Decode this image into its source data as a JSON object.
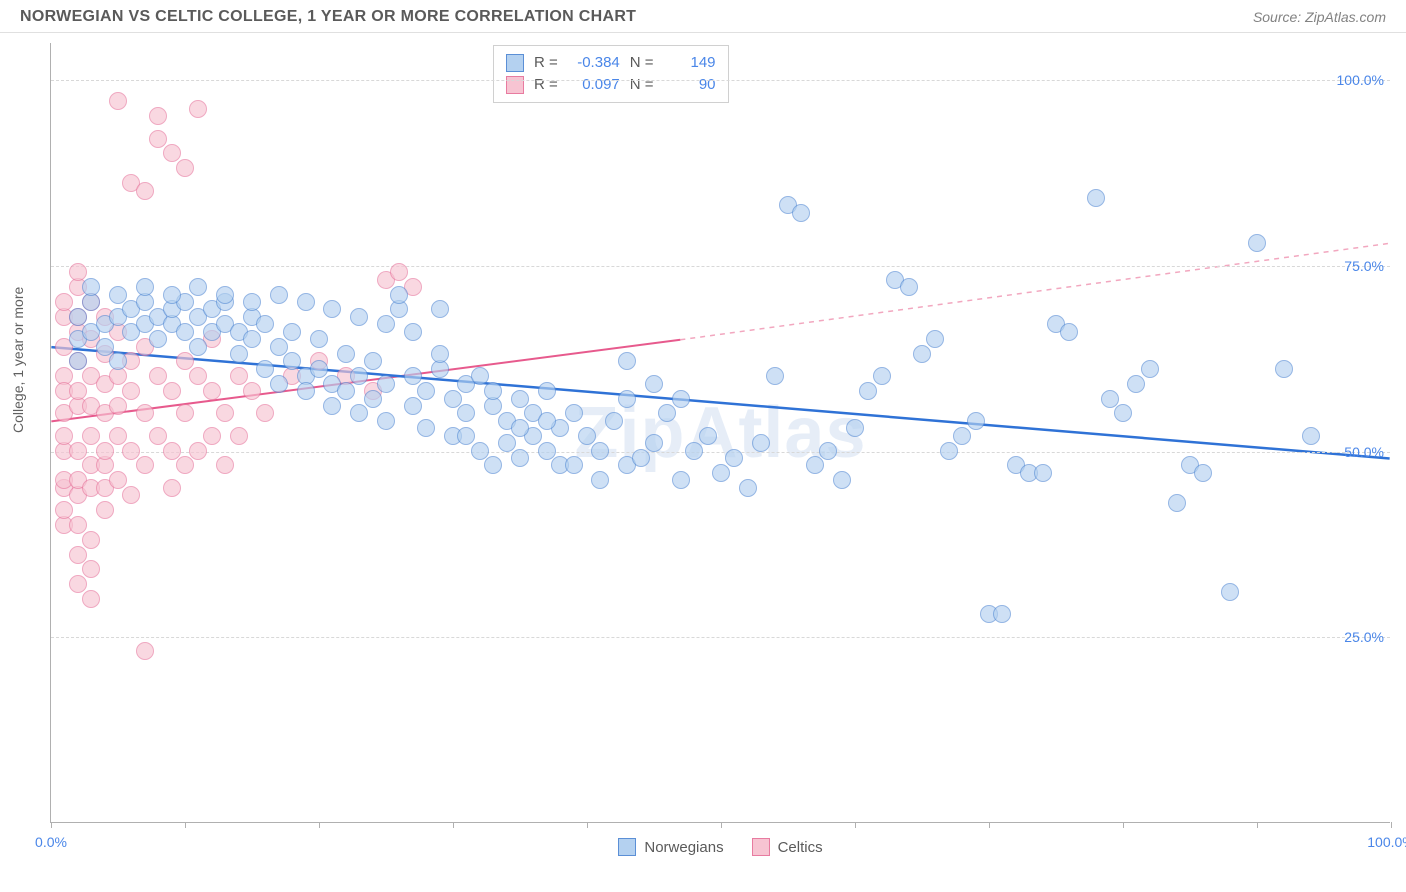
{
  "title": "NORWEGIAN VS CELTIC COLLEGE, 1 YEAR OR MORE CORRELATION CHART",
  "source": "Source: ZipAtlas.com",
  "ylabel": "College, 1 year or more",
  "watermark": "ZipAtlas",
  "chart": {
    "type": "scatter",
    "xlim": [
      0,
      100
    ],
    "ylim": [
      0,
      105
    ],
    "xtick_positions": [
      0,
      10,
      20,
      30,
      40,
      50,
      60,
      70,
      80,
      90,
      100
    ],
    "xtick_labels": {
      "0": "0.0%",
      "100": "100.0%"
    },
    "ytick_positions": [
      25,
      50,
      75,
      100
    ],
    "ytick_labels": {
      "25": "25.0%",
      "50": "50.0%",
      "75": "75.0%",
      "100": "100.0%"
    },
    "grid_color": "#d8d8d8",
    "axis_color": "#b0b0b0",
    "background_color": "#ffffff",
    "label_color": "#4a86e8",
    "point_radius": 9,
    "point_stroke_width": 1,
    "series": [
      {
        "name": "Norwegians",
        "fill": "#b4d1f0",
        "fill_opacity": 0.65,
        "stroke": "#5b8fd6",
        "R": "-0.384",
        "N": "149",
        "trend": {
          "x1": 0,
          "y1": 64,
          "x2": 100,
          "y2": 49,
          "color": "#2f72d6",
          "width": 2.5,
          "dash": "none"
        },
        "points": [
          [
            2,
            68
          ],
          [
            2,
            65
          ],
          [
            3,
            70
          ],
          [
            3,
            66
          ],
          [
            4,
            67
          ],
          [
            4,
            64
          ],
          [
            5,
            68
          ],
          [
            5,
            62
          ],
          [
            6,
            69
          ],
          [
            6,
            66
          ],
          [
            7,
            67
          ],
          [
            7,
            70
          ],
          [
            8,
            68
          ],
          [
            8,
            65
          ],
          [
            9,
            67
          ],
          [
            9,
            69
          ],
          [
            10,
            70
          ],
          [
            10,
            66
          ],
          [
            11,
            68
          ],
          [
            11,
            64
          ],
          [
            12,
            69
          ],
          [
            12,
            66
          ],
          [
            13,
            67
          ],
          [
            13,
            70
          ],
          [
            14,
            66
          ],
          [
            14,
            63
          ],
          [
            15,
            68
          ],
          [
            15,
            65
          ],
          [
            16,
            61
          ],
          [
            16,
            67
          ],
          [
            17,
            64
          ],
          [
            17,
            59
          ],
          [
            18,
            66
          ],
          [
            18,
            62
          ],
          [
            19,
            60
          ],
          [
            19,
            58
          ],
          [
            20,
            65
          ],
          [
            20,
            61
          ],
          [
            21,
            59
          ],
          [
            21,
            56
          ],
          [
            22,
            63
          ],
          [
            22,
            58
          ],
          [
            23,
            60
          ],
          [
            23,
            55
          ],
          [
            24,
            62
          ],
          [
            24,
            57
          ],
          [
            25,
            59
          ],
          [
            25,
            54
          ],
          [
            26,
            69
          ],
          [
            26,
            71
          ],
          [
            27,
            60
          ],
          [
            27,
            56
          ],
          [
            28,
            58
          ],
          [
            28,
            53
          ],
          [
            29,
            61
          ],
          [
            29,
            69
          ],
          [
            30,
            57
          ],
          [
            30,
            52
          ],
          [
            31,
            59
          ],
          [
            31,
            55
          ],
          [
            32,
            60
          ],
          [
            32,
            50
          ],
          [
            33,
            56
          ],
          [
            33,
            58
          ],
          [
            34,
            54
          ],
          [
            34,
            51
          ],
          [
            35,
            57
          ],
          [
            35,
            49
          ],
          [
            36,
            55
          ],
          [
            36,
            52
          ],
          [
            37,
            58
          ],
          [
            37,
            50
          ],
          [
            38,
            53
          ],
          [
            38,
            48
          ],
          [
            39,
            55
          ],
          [
            40,
            52
          ],
          [
            41,
            50
          ],
          [
            42,
            54
          ],
          [
            43,
            48
          ],
          [
            43,
            57
          ],
          [
            44,
            49
          ],
          [
            45,
            51
          ],
          [
            46,
            55
          ],
          [
            47,
            46
          ],
          [
            48,
            50
          ],
          [
            49,
            52
          ],
          [
            50,
            47
          ],
          [
            51,
            49
          ],
          [
            52,
            45
          ],
          [
            53,
            51
          ],
          [
            54,
            60
          ],
          [
            55,
            83
          ],
          [
            56,
            82
          ],
          [
            57,
            48
          ],
          [
            58,
            50
          ],
          [
            59,
            46
          ],
          [
            60,
            53
          ],
          [
            61,
            58
          ],
          [
            62,
            60
          ],
          [
            63,
            73
          ],
          [
            64,
            72
          ],
          [
            65,
            63
          ],
          [
            66,
            65
          ],
          [
            67,
            50
          ],
          [
            68,
            52
          ],
          [
            69,
            54
          ],
          [
            70,
            28
          ],
          [
            71,
            28
          ],
          [
            72,
            48
          ],
          [
            73,
            47
          ],
          [
            74,
            47
          ],
          [
            75,
            67
          ],
          [
            76,
            66
          ],
          [
            78,
            84
          ],
          [
            79,
            57
          ],
          [
            80,
            55
          ],
          [
            81,
            59
          ],
          [
            82,
            61
          ],
          [
            84,
            43
          ],
          [
            85,
            48
          ],
          [
            86,
            47
          ],
          [
            88,
            31
          ],
          [
            90,
            78
          ],
          [
            92,
            61
          ],
          [
            94,
            52
          ],
          [
            2,
            62
          ],
          [
            3,
            72
          ],
          [
            5,
            71
          ],
          [
            7,
            72
          ],
          [
            9,
            71
          ],
          [
            11,
            72
          ],
          [
            13,
            71
          ],
          [
            15,
            70
          ],
          [
            17,
            71
          ],
          [
            19,
            70
          ],
          [
            21,
            69
          ],
          [
            23,
            68
          ],
          [
            25,
            67
          ],
          [
            27,
            66
          ],
          [
            29,
            63
          ],
          [
            31,
            52
          ],
          [
            33,
            48
          ],
          [
            35,
            53
          ],
          [
            37,
            54
          ],
          [
            39,
            48
          ],
          [
            41,
            46
          ],
          [
            43,
            62
          ],
          [
            45,
            59
          ],
          [
            47,
            57
          ]
        ]
      },
      {
        "name": "Celtics",
        "fill": "#f7c4d2",
        "fill_opacity": 0.65,
        "stroke": "#e87ba0",
        "R": "0.097",
        "N": "90",
        "trend_solid": {
          "x1": 0,
          "y1": 54,
          "x2": 47,
          "y2": 65,
          "color": "#e75a8d",
          "width": 2,
          "dash": "none"
        },
        "trend_dash": {
          "x1": 47,
          "y1": 65,
          "x2": 100,
          "y2": 78,
          "color": "#f2a7bf",
          "width": 1.5,
          "dash": "5,5"
        },
        "points": [
          [
            1,
            68
          ],
          [
            1,
            64
          ],
          [
            1,
            60
          ],
          [
            1,
            55
          ],
          [
            1,
            50
          ],
          [
            1,
            45
          ],
          [
            1,
            40
          ],
          [
            1,
            70
          ],
          [
            1,
            58
          ],
          [
            1,
            52
          ],
          [
            1,
            46
          ],
          [
            1,
            42
          ],
          [
            2,
            66
          ],
          [
            2,
            62
          ],
          [
            2,
            56
          ],
          [
            2,
            50
          ],
          [
            2,
            44
          ],
          [
            2,
            40
          ],
          [
            2,
            36
          ],
          [
            2,
            72
          ],
          [
            2,
            68
          ],
          [
            2,
            58
          ],
          [
            2,
            46
          ],
          [
            2,
            32
          ],
          [
            3,
            65
          ],
          [
            3,
            60
          ],
          [
            3,
            52
          ],
          [
            3,
            45
          ],
          [
            3,
            38
          ],
          [
            3,
            70
          ],
          [
            3,
            56
          ],
          [
            3,
            48
          ],
          [
            3,
            34
          ],
          [
            3,
            30
          ],
          [
            4,
            63
          ],
          [
            4,
            55
          ],
          [
            4,
            48
          ],
          [
            4,
            42
          ],
          [
            4,
            68
          ],
          [
            4,
            59
          ],
          [
            4,
            50
          ],
          [
            4,
            45
          ],
          [
            5,
            60
          ],
          [
            5,
            52
          ],
          [
            5,
            46
          ],
          [
            5,
            97
          ],
          [
            5,
            66
          ],
          [
            5,
            56
          ],
          [
            6,
            58
          ],
          [
            6,
            50
          ],
          [
            6,
            44
          ],
          [
            6,
            86
          ],
          [
            6,
            62
          ],
          [
            7,
            64
          ],
          [
            7,
            55
          ],
          [
            7,
            48
          ],
          [
            7,
            85
          ],
          [
            7,
            23
          ],
          [
            8,
            60
          ],
          [
            8,
            52
          ],
          [
            8,
            95
          ],
          [
            8,
            92
          ],
          [
            9,
            58
          ],
          [
            9,
            50
          ],
          [
            9,
            45
          ],
          [
            9,
            90
          ],
          [
            10,
            62
          ],
          [
            10,
            55
          ],
          [
            10,
            48
          ],
          [
            10,
            88
          ],
          [
            11,
            60
          ],
          [
            11,
            50
          ],
          [
            11,
            96
          ],
          [
            12,
            58
          ],
          [
            12,
            52
          ],
          [
            12,
            65
          ],
          [
            13,
            55
          ],
          [
            13,
            48
          ],
          [
            14,
            60
          ],
          [
            14,
            52
          ],
          [
            15,
            58
          ],
          [
            16,
            55
          ],
          [
            18,
            60
          ],
          [
            20,
            62
          ],
          [
            22,
            60
          ],
          [
            24,
            58
          ],
          [
            25,
            73
          ],
          [
            26,
            74
          ],
          [
            27,
            72
          ],
          [
            2,
            74
          ]
        ]
      }
    ]
  },
  "legend_inner": {
    "rows": [
      {
        "swatch_fill": "#b4d1f0",
        "swatch_stroke": "#5b8fd6",
        "R_label": "R =",
        "R": "-0.384",
        "N_label": "N =",
        "N": "149"
      },
      {
        "swatch_fill": "#f7c4d2",
        "swatch_stroke": "#e87ba0",
        "R_label": "R =",
        "R": "0.097",
        "N_label": "N =",
        "N": "90"
      }
    ]
  },
  "legend_bottom": [
    {
      "swatch_fill": "#b4d1f0",
      "swatch_stroke": "#5b8fd6",
      "label": "Norwegians"
    },
    {
      "swatch_fill": "#f7c4d2",
      "swatch_stroke": "#e87ba0",
      "label": "Celtics"
    }
  ]
}
